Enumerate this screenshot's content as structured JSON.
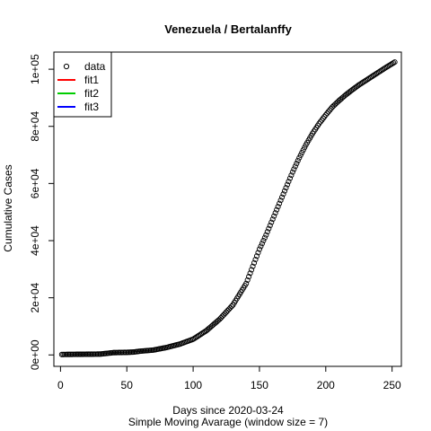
{
  "chart_data": {
    "type": "scatter",
    "title": "Venezuela / Bertalanffy",
    "xlabel": "Days since 2020-03-24",
    "subtitle": "Simple Moving Avarage (window size = 7)",
    "ylabel": "Cumulative Cases",
    "xlim": [
      -5,
      257
    ],
    "ylim": [
      -4000,
      106000
    ],
    "x_ticks": [
      0,
      50,
      100,
      150,
      200,
      250
    ],
    "x_tick_labels": [
      "0",
      "50",
      "100",
      "150",
      "200",
      "250"
    ],
    "y_ticks": [
      0,
      20000,
      40000,
      60000,
      80000,
      100000
    ],
    "y_tick_labels": [
      "0e+00",
      "2e+04",
      "4e+04",
      "6e+04",
      "8e+04",
      "1e+05"
    ],
    "legend": {
      "position": "top-left",
      "entries": [
        {
          "label": "data",
          "kind": "point",
          "color": "#000000"
        },
        {
          "label": "fit1",
          "kind": "line",
          "color": "#ff0000"
        },
        {
          "label": "fit2",
          "kind": "line",
          "color": "#00cd00"
        },
        {
          "label": "fit3",
          "kind": "line",
          "color": "#0000ff"
        }
      ]
    },
    "series": [
      {
        "name": "data",
        "marker": "open-circle",
        "color": "#000000",
        "points": [
          [
            1,
            150
          ],
          [
            10,
            200
          ],
          [
            20,
            250
          ],
          [
            30,
            300
          ],
          [
            40,
            800
          ],
          [
            50,
            900
          ],
          [
            55,
            1000
          ],
          [
            60,
            1300
          ],
          [
            70,
            1700
          ],
          [
            80,
            2600
          ],
          [
            90,
            3800
          ],
          [
            100,
            5500
          ],
          [
            110,
            8500
          ],
          [
            120,
            12500
          ],
          [
            130,
            17500
          ],
          [
            140,
            25000
          ],
          [
            145,
            31000
          ],
          [
            150,
            37000
          ],
          [
            155,
            42000
          ],
          [
            160,
            47500
          ],
          [
            165,
            53000
          ],
          [
            170,
            58500
          ],
          [
            175,
            64000
          ],
          [
            180,
            69000
          ],
          [
            185,
            73500
          ],
          [
            190,
            77500
          ],
          [
            195,
            81000
          ],
          [
            200,
            84000
          ],
          [
            205,
            86800
          ],
          [
            210,
            89000
          ],
          [
            215,
            91000
          ],
          [
            220,
            92800
          ],
          [
            225,
            94500
          ],
          [
            230,
            96000
          ],
          [
            235,
            97500
          ],
          [
            240,
            99000
          ],
          [
            245,
            100500
          ],
          [
            252,
            102500
          ]
        ]
      }
    ]
  }
}
